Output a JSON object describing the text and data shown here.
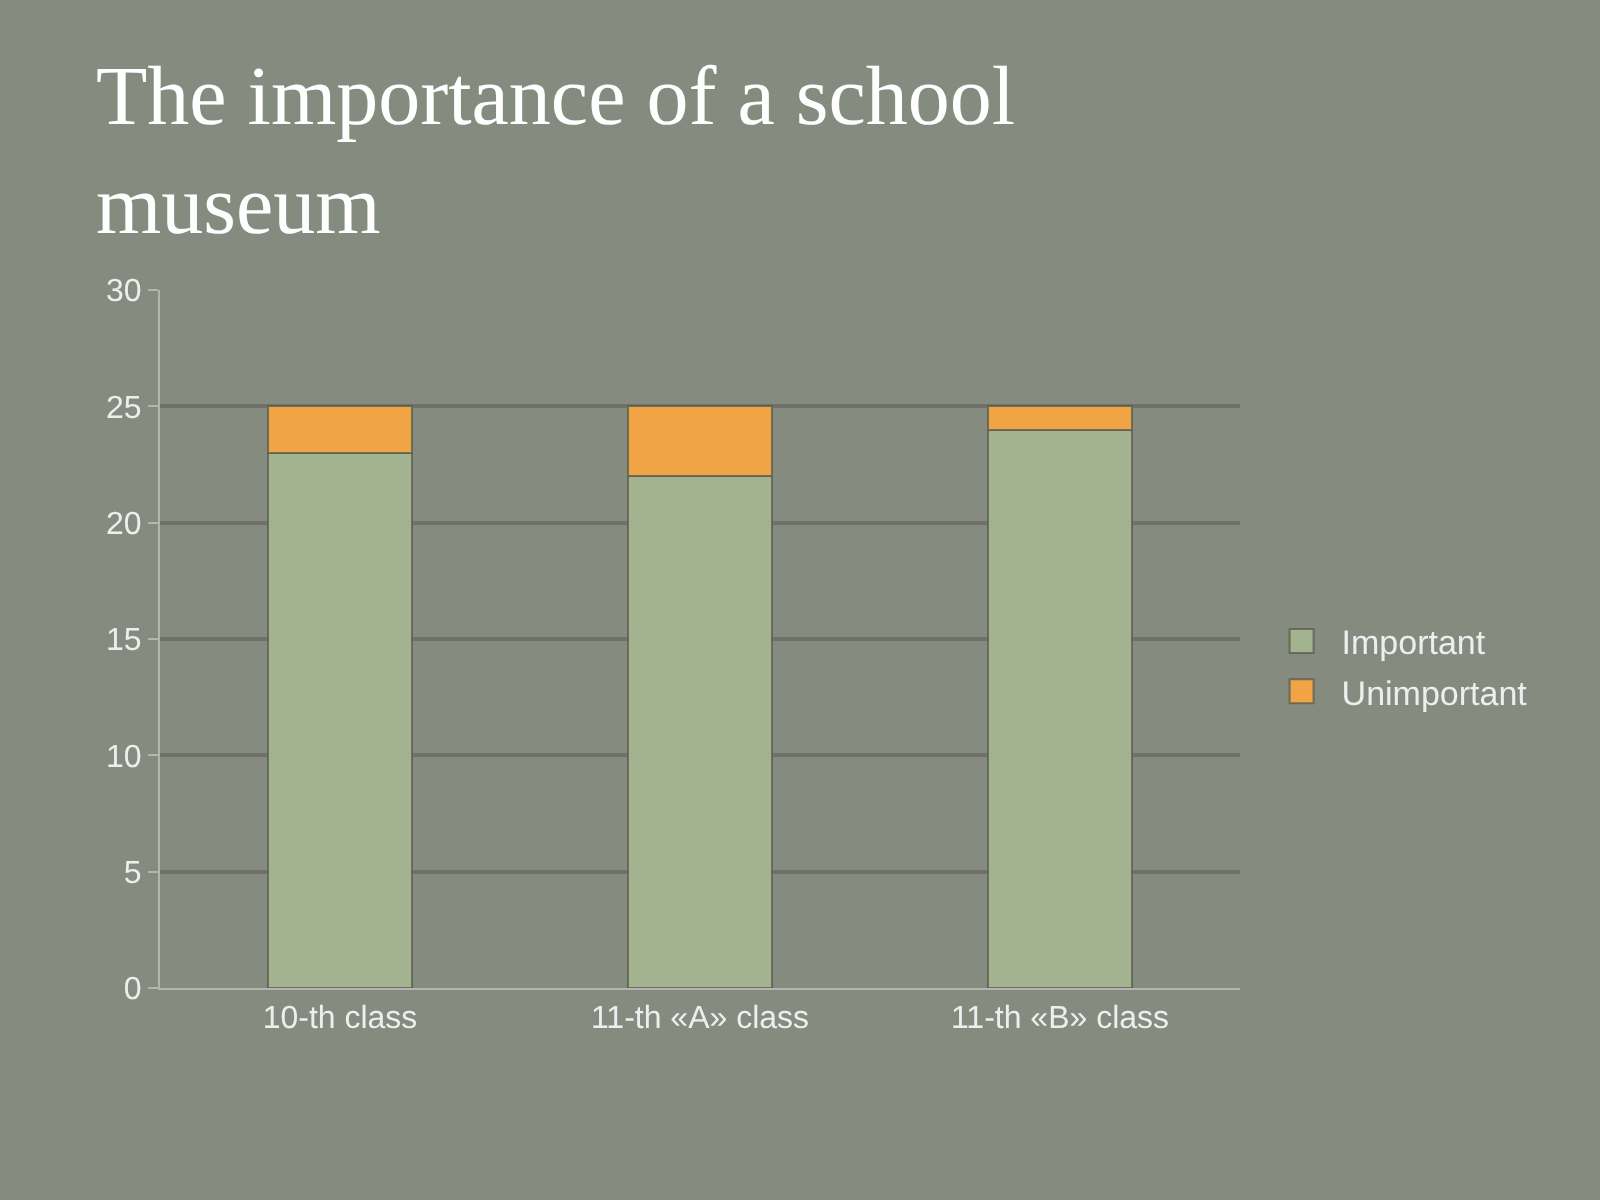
{
  "chart_data": {
    "type": "bar",
    "title": "The importance of a school museum",
    "categories": [
      "10-th class",
      "11-th «A» class",
      "11-th «B» class"
    ],
    "series": [
      {
        "name": "Important",
        "color": "#a3b38f",
        "values": [
          23,
          22,
          24
        ]
      },
      {
        "name": "Unimportant",
        "color": "#f0a445",
        "values": [
          2,
          3,
          1
        ]
      }
    ],
    "stacked": true,
    "ylim": [
      0,
      30
    ],
    "yticks": [
      0,
      5,
      10,
      15,
      20,
      25,
      30
    ],
    "grid": "y",
    "legend": "right"
  }
}
